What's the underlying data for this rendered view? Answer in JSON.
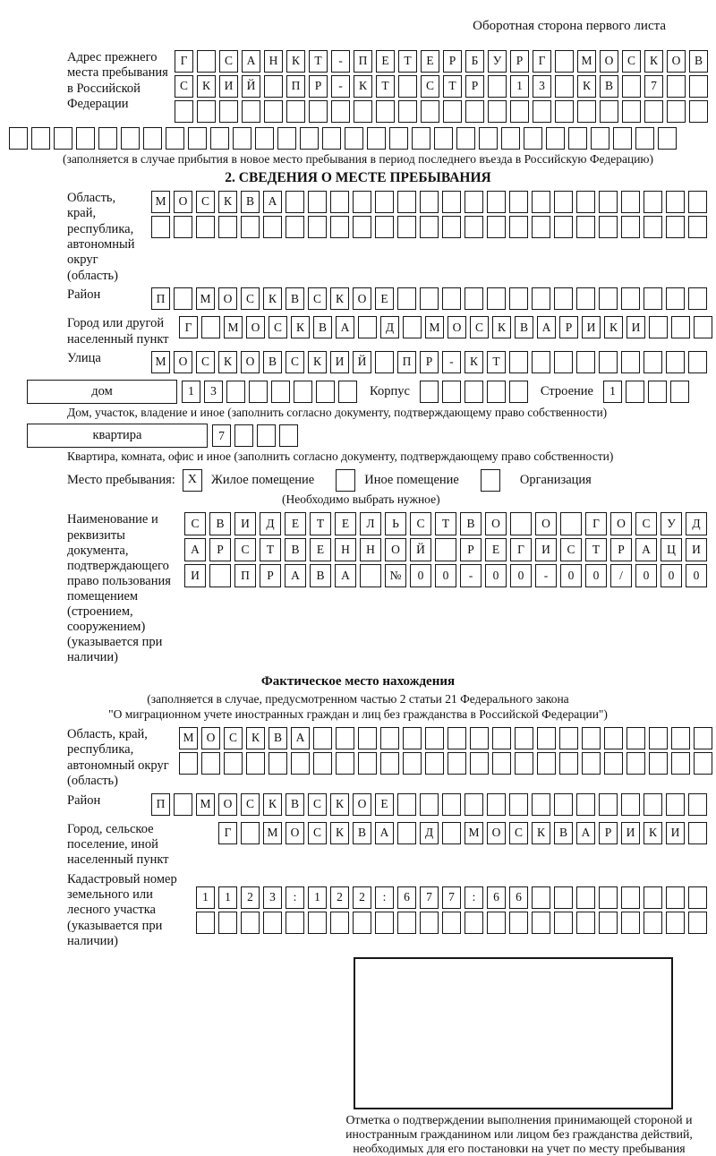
{
  "header": {
    "title": "Оборотная сторона первого листа"
  },
  "prev_address": {
    "label": "Адрес прежнего места пребывания в Российской Федерации",
    "rows": [
      {
        "cells": "Г САНКТ-ПЕТЕРБУРГ МОСКОВ",
        "count": 24
      },
      {
        "cells": "СКИЙ ПР-КТ СТР 13 КВ 7",
        "count": 24
      },
      {
        "cells": "",
        "count": 24
      }
    ],
    "row_full": {
      "cells": "",
      "count": 30
    },
    "note": "(заполняется в случае прибытия в новое место пребывания в период последнего въезда в Российскую Федерацию)"
  },
  "section2": {
    "title": "2. СВЕДЕНИЯ О МЕСТЕ ПРЕБЫВАНИЯ",
    "oblast": {
      "label": "Область, край, республика, автономный округ (область)",
      "rows": [
        {
          "cells": "МОСКВА",
          "count": 25
        },
        {
          "cells": "",
          "count": 25
        }
      ]
    },
    "raion": {
      "label": "Район",
      "row": {
        "cells": "П МОСКВСКОЕ",
        "count": 25
      }
    },
    "gorod": {
      "label": "Город или другой населенный пункт",
      "row": {
        "cells": "Г МОСКВА Д МОСКВАРИКИ",
        "count": 24
      }
    },
    "ulitsa": {
      "label": "Улица",
      "row": {
        "cells": "МОСКОВСКИЙ ПР-КТ",
        "count": 25
      }
    },
    "dom": {
      "label": "дом",
      "row": {
        "cells": "13",
        "count": 8
      },
      "korpus_label": "Корпус",
      "korpus_row": {
        "cells": "",
        "count": 5
      },
      "stroenie_label": "Строение",
      "stroenie_row": {
        "cells": "1",
        "count": 4
      },
      "note": "Дом, участок, владение и иное (заполнить согласно документу, подтверждающему право собственности)"
    },
    "kvartira": {
      "label": "квартира",
      "row": {
        "cells": "7",
        "count": 4
      },
      "note": "Квартира, комната, офис и иное (заполнить согласно документу, подтверждающему право собственности)"
    },
    "mesto": {
      "label": "Место пребывания:",
      "options": [
        {
          "label": "Жилое помещение",
          "mark": "Х"
        },
        {
          "label": "Иное помещение",
          "mark": ""
        },
        {
          "label": "Организация",
          "mark": ""
        }
      ],
      "note": "(Необходимо выбрать нужное)"
    },
    "doc": {
      "label": "Наименование и реквизиты документа, подтверждающего право пользования помещением (строением, сооружением) (указывается при наличии)",
      "rows": [
        {
          "cells": "СВИДЕТЕЛЬСТВО О ГОСУД",
          "count": 21
        },
        {
          "cells": "АРСТВЕННОЙ РЕГИСТРАЦИ",
          "count": 21
        },
        {
          "cells": "И ПРАВА №00-00-00/000",
          "count": 21
        }
      ]
    }
  },
  "fact": {
    "title": "Фактическое место нахождения",
    "subtitle1": "(заполняется в случае, предусмотренном частью 2 статьи 21 Федерального закона",
    "subtitle2": "\"О миграционном учете иностранных граждан и лиц без гражданства в Российской Федерации\")",
    "oblast": {
      "label": "Область, край, республика, автономный округ (область)",
      "rows": [
        {
          "cells": "МОСКВА",
          "count": 24
        },
        {
          "cells": "",
          "count": 24
        }
      ]
    },
    "raion": {
      "label": "Район",
      "row": {
        "cells": "П МОСКВСКОЕ",
        "count": 25
      }
    },
    "gorod": {
      "label": "Город, сельское поселение, иной населенный пункт",
      "row": {
        "cells": "Г МОСКВА Д МОСКВАРИКИ",
        "count": 22
      }
    },
    "kadastr": {
      "label": "Кадастровый номер земельного или лесного участка (указывается при наличии)",
      "rows": [
        {
          "cells": "1123:122:677:66",
          "count": 23
        },
        {
          "cells": "",
          "count": 23
        }
      ]
    }
  },
  "stamp": {
    "caption": "Отметка о подтверждении выполнения принимающей стороной и иностранным гражданином или лицом без гражданства действий, необходимых для его постановки на учет по месту пребывания"
  }
}
